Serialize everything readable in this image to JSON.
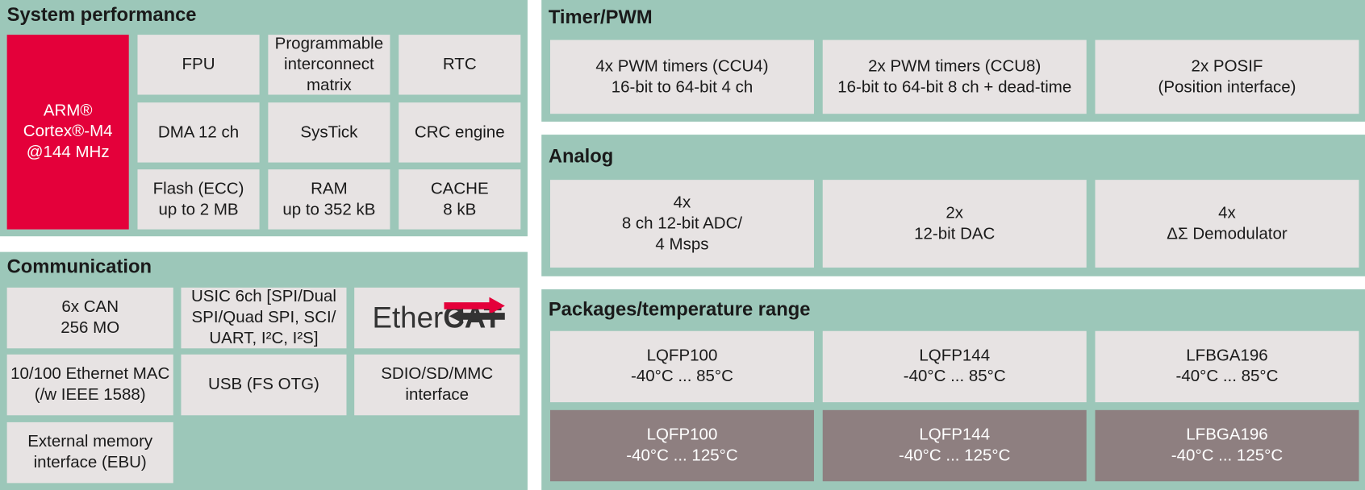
{
  "panels": [
    {
      "title": "System performance",
      "cells": [
        {
          "lines": [
            "ARM®",
            "Cortex®-M4",
            "@144 MHz"
          ]
        },
        {
          "lines": [
            "FPU"
          ]
        },
        {
          "lines": [
            "Programmable",
            "interconnect",
            "matrix"
          ]
        },
        {
          "lines": [
            "RTC"
          ]
        },
        {
          "lines": [
            "DMA 12 ch"
          ]
        },
        {
          "lines": [
            "SysTick"
          ]
        },
        {
          "lines": [
            "CRC engine"
          ]
        },
        {
          "lines": [
            "Flash (ECC)",
            "up to 2 MB"
          ]
        },
        {
          "lines": [
            "RAM",
            "up to 352 kB"
          ]
        },
        {
          "lines": [
            "CACHE",
            "8 kB"
          ]
        }
      ]
    },
    {
      "title": "Communication",
      "cells": [
        {
          "lines": [
            "6x CAN",
            "256 MO"
          ]
        },
        {
          "lines": [
            "USIC 6ch [SPI/Dual",
            "SPI/Quad SPI, SCI/",
            "UART, I²C, I²S]"
          ]
        },
        {
          "logo": [
            "Ether",
            "CAT"
          ]
        },
        {
          "lines": [
            "10/100 Ethernet MAC",
            "(/w IEEE 1588)"
          ]
        },
        {
          "lines": [
            "USB (FS OTG)"
          ]
        },
        {
          "lines": [
            "SDIO/SD/MMC",
            "interface"
          ]
        },
        {
          "lines": [
            "External memory",
            "interface (EBU)"
          ]
        }
      ]
    },
    {
      "title": "Timer/PWM",
      "cells": [
        {
          "lines": [
            "4x PWM timers (CCU4)",
            "16-bit to 64-bit 4 ch"
          ]
        },
        {
          "lines": [
            "2x PWM timers (CCU8)",
            "16-bit to 64-bit 8 ch + dead-time"
          ]
        },
        {
          "lines": [
            "2x POSIF",
            "(Position interface)"
          ]
        }
      ]
    },
    {
      "title": "Analog",
      "cells": [
        {
          "lines": [
            "4x",
            "8 ch 12-bit ADC/",
            "4 Msps"
          ]
        },
        {
          "lines": [
            "2x",
            "12-bit DAC"
          ]
        },
        {
          "lines": [
            "4x",
            "ΔΣ Demodulator"
          ]
        }
      ]
    },
    {
      "title": "Packages/temperature range",
      "cells": [
        {
          "lines": [
            "LQFP100",
            "-40°C ... 85°C"
          ]
        },
        {
          "lines": [
            "LQFP144",
            "-40°C ... 85°C"
          ]
        },
        {
          "lines": [
            "LFBGA196",
            "-40°C ... 85°C"
          ]
        },
        {
          "lines": [
            "LQFP100",
            "-40°C ... 125°C"
          ]
        },
        {
          "lines": [
            "LQFP144",
            "-40°C ... 125°C"
          ]
        },
        {
          "lines": [
            "LFBGA196",
            "-40°C ... 125°C"
          ]
        }
      ]
    }
  ]
}
